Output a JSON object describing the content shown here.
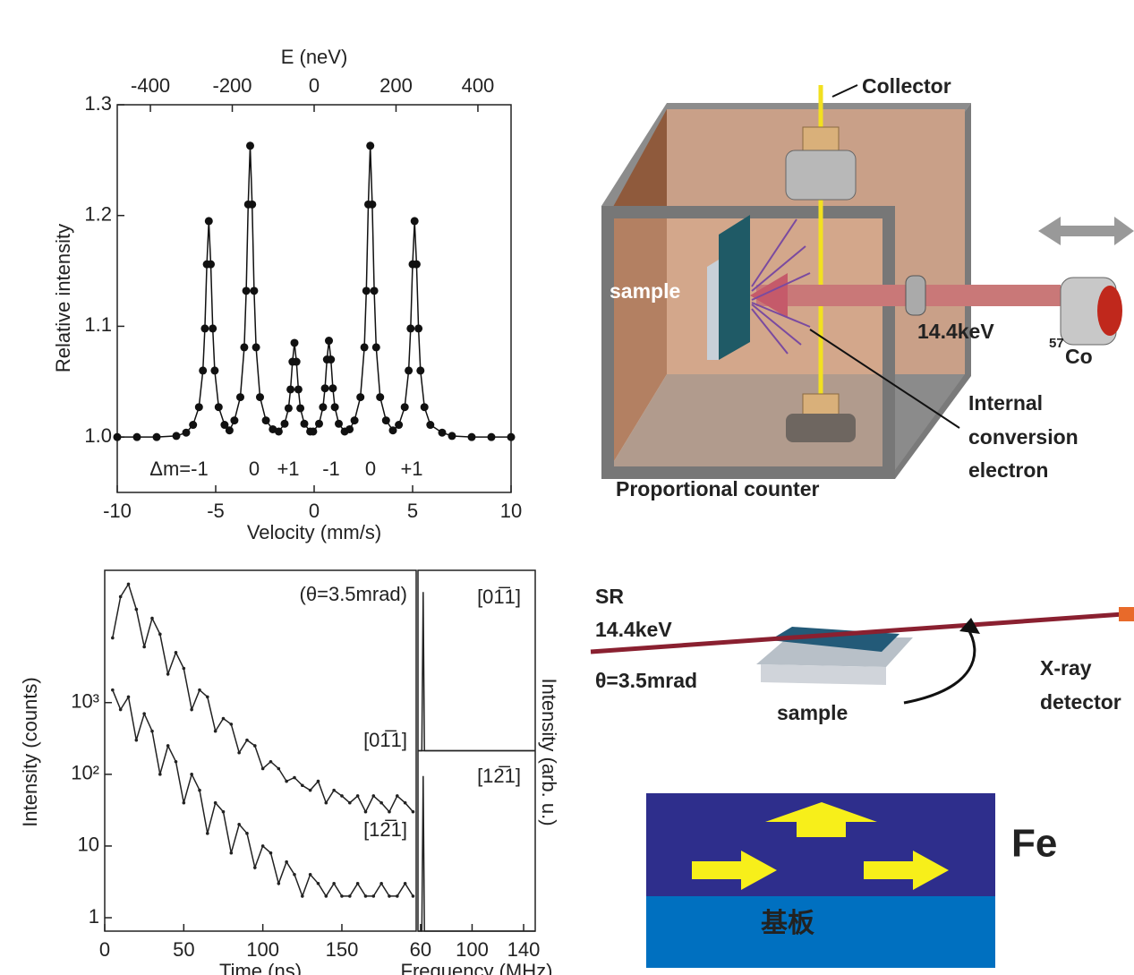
{
  "chart_data": [
    {
      "type": "line",
      "x_label": "Velocity (mm/s)",
      "y_label": "Relative intensity",
      "x2_label": "E (neV)",
      "x": [
        -10,
        -9,
        -8,
        -7,
        -6.5,
        -6.15,
        -5.85,
        -5.65,
        -5.55,
        -5.45,
        -5.35,
        -5.25,
        -5.15,
        -5.05,
        -4.85,
        -4.55,
        -4.3,
        -4.05,
        -3.75,
        -3.55,
        -3.45,
        -3.35,
        -3.25,
        -3.15,
        -3.05,
        -2.95,
        -2.75,
        -2.45,
        -2.1,
        -1.8,
        -1.5,
        -1.3,
        -1.2,
        -1.1,
        -1.0,
        -0.9,
        -0.8,
        -0.7,
        -0.5,
        -0.2,
        -0.05,
        0.25,
        0.45,
        0.55,
        0.65,
        0.75,
        0.85,
        0.95,
        1.05,
        1.25,
        1.55,
        1.8,
        2.05,
        2.35,
        2.55,
        2.65,
        2.75,
        2.85,
        2.95,
        3.05,
        3.15,
        3.35,
        3.65,
        4.0,
        4.3,
        4.6,
        4.8,
        4.9,
        5.0,
        5.1,
        5.2,
        5.3,
        5.4,
        5.6,
        5.9,
        6.5,
        7,
        8,
        9,
        10
      ],
      "values": [
        1.0,
        1.0,
        1.0,
        1.001,
        1.004,
        1.011,
        1.027,
        1.06,
        1.098,
        1.156,
        1.195,
        1.156,
        1.098,
        1.06,
        1.027,
        1.011,
        1.006,
        1.015,
        1.036,
        1.081,
        1.132,
        1.21,
        1.263,
        1.21,
        1.132,
        1.081,
        1.036,
        1.015,
        1.007,
        1.005,
        1.012,
        1.026,
        1.043,
        1.068,
        1.085,
        1.068,
        1.043,
        1.026,
        1.012,
        1.005,
        1.005,
        1.012,
        1.027,
        1.044,
        1.07,
        1.087,
        1.07,
        1.044,
        1.027,
        1.012,
        1.005,
        1.007,
        1.015,
        1.036,
        1.081,
        1.132,
        1.21,
        1.263,
        1.21,
        1.132,
        1.081,
        1.036,
        1.015,
        1.006,
        1.011,
        1.027,
        1.06,
        1.098,
        1.156,
        1.195,
        1.156,
        1.098,
        1.06,
        1.027,
        1.011,
        1.004,
        1.001,
        1.0,
        1.0,
        1.0
      ],
      "color": "#111111",
      "xlim": [
        -10,
        10
      ],
      "xticks": [
        -10,
        -5,
        0,
        5,
        10
      ],
      "x2lim": [
        -481,
        481
      ],
      "x2ticks": [
        -400,
        -200,
        0,
        200,
        400
      ],
      "ylim": [
        0.95,
        1.3
      ],
      "yticks": [
        {
          "value": 1,
          "label": "1.0"
        },
        1.1,
        1.2,
        1.3
      ],
      "annotations": [
        "Δm=-1",
        "0",
        "+1",
        "-1",
        "0",
        "+1"
      ]
    },
    {
      "type": "line",
      "x_label": "Time (ns)",
      "y_label": "Intensity (counts)",
      "annotation": "(θ=3.5mrad)",
      "log_y": true,
      "x": [
        5,
        10,
        15,
        20,
        25,
        30,
        35,
        40,
        45,
        50,
        55,
        60,
        65,
        70,
        75,
        80,
        85,
        90,
        95,
        100,
        105,
        110,
        115,
        120,
        125,
        130,
        135,
        140,
        145,
        150,
        155,
        160,
        165,
        170,
        175,
        180,
        185,
        190,
        195
      ],
      "series": [
        {
          "name": "[01̅1]",
          "color": "#222222",
          "values": [
            8000,
            30000,
            45000,
            20000,
            6000,
            15000,
            9000,
            2500,
            5000,
            3000,
            800,
            1500,
            1200,
            400,
            600,
            500,
            200,
            300,
            250,
            120,
            150,
            120,
            80,
            90,
            70,
            60,
            80,
            40,
            60,
            50,
            40,
            50,
            30,
            50,
            40,
            30,
            50,
            40,
            30
          ]
        },
        {
          "name": "[12̅1]",
          "color": "#222222",
          "values": [
            1500,
            800,
            1200,
            300,
            700,
            400,
            100,
            250,
            150,
            40,
            100,
            60,
            15,
            40,
            30,
            8,
            20,
            15,
            5,
            10,
            8,
            3,
            6,
            4,
            2,
            4,
            3,
            2,
            3,
            2,
            2,
            3,
            2,
            2,
            3,
            2,
            2,
            3,
            2
          ]
        }
      ],
      "xlim": [
        0,
        197
      ],
      "xticks": [
        0,
        50,
        100,
        150
      ],
      "ylim": [
        0.65,
        70000
      ],
      "yticks": [
        1,
        10,
        {
          "value": 100,
          "label": "10²"
        },
        {
          "value": 1000,
          "label": "10³"
        }
      ]
    },
    {
      "type": "spectrum",
      "x_label": "Frequency (MHz)",
      "y_label": "Intensity (arb. u.)",
      "x": [
        58,
        61,
        62,
        63,
        149
      ],
      "series": [
        {
          "name": "[01̅1]",
          "color": "#222222",
          "values": [
            0,
            0,
            0.88,
            0,
            0
          ]
        },
        {
          "name": "[12̅1]",
          "color": "#222222",
          "values": [
            0,
            0,
            0.86,
            0,
            0
          ]
        }
      ],
      "xlim": [
        58,
        149
      ],
      "xticks": [
        60,
        100,
        140
      ],
      "ylim": [
        0,
        1
      ]
    }
  ],
  "diagrams": {
    "apparatus": {
      "collector": "Collector",
      "sample": "sample",
      "energy": "14.4keV",
      "isotope_mass": "57",
      "isotope": "Co",
      "electron": [
        "Internal",
        "conversion",
        "electron"
      ],
      "counter": "Proportional counter"
    },
    "grazing": {
      "source": "SR",
      "energy": "14.4keV",
      "angle": "θ=3.5mrad",
      "sample": "sample",
      "detector": [
        "X-ray",
        "detector"
      ]
    },
    "film": {
      "layer": "Fe",
      "substrate": "基板"
    }
  }
}
